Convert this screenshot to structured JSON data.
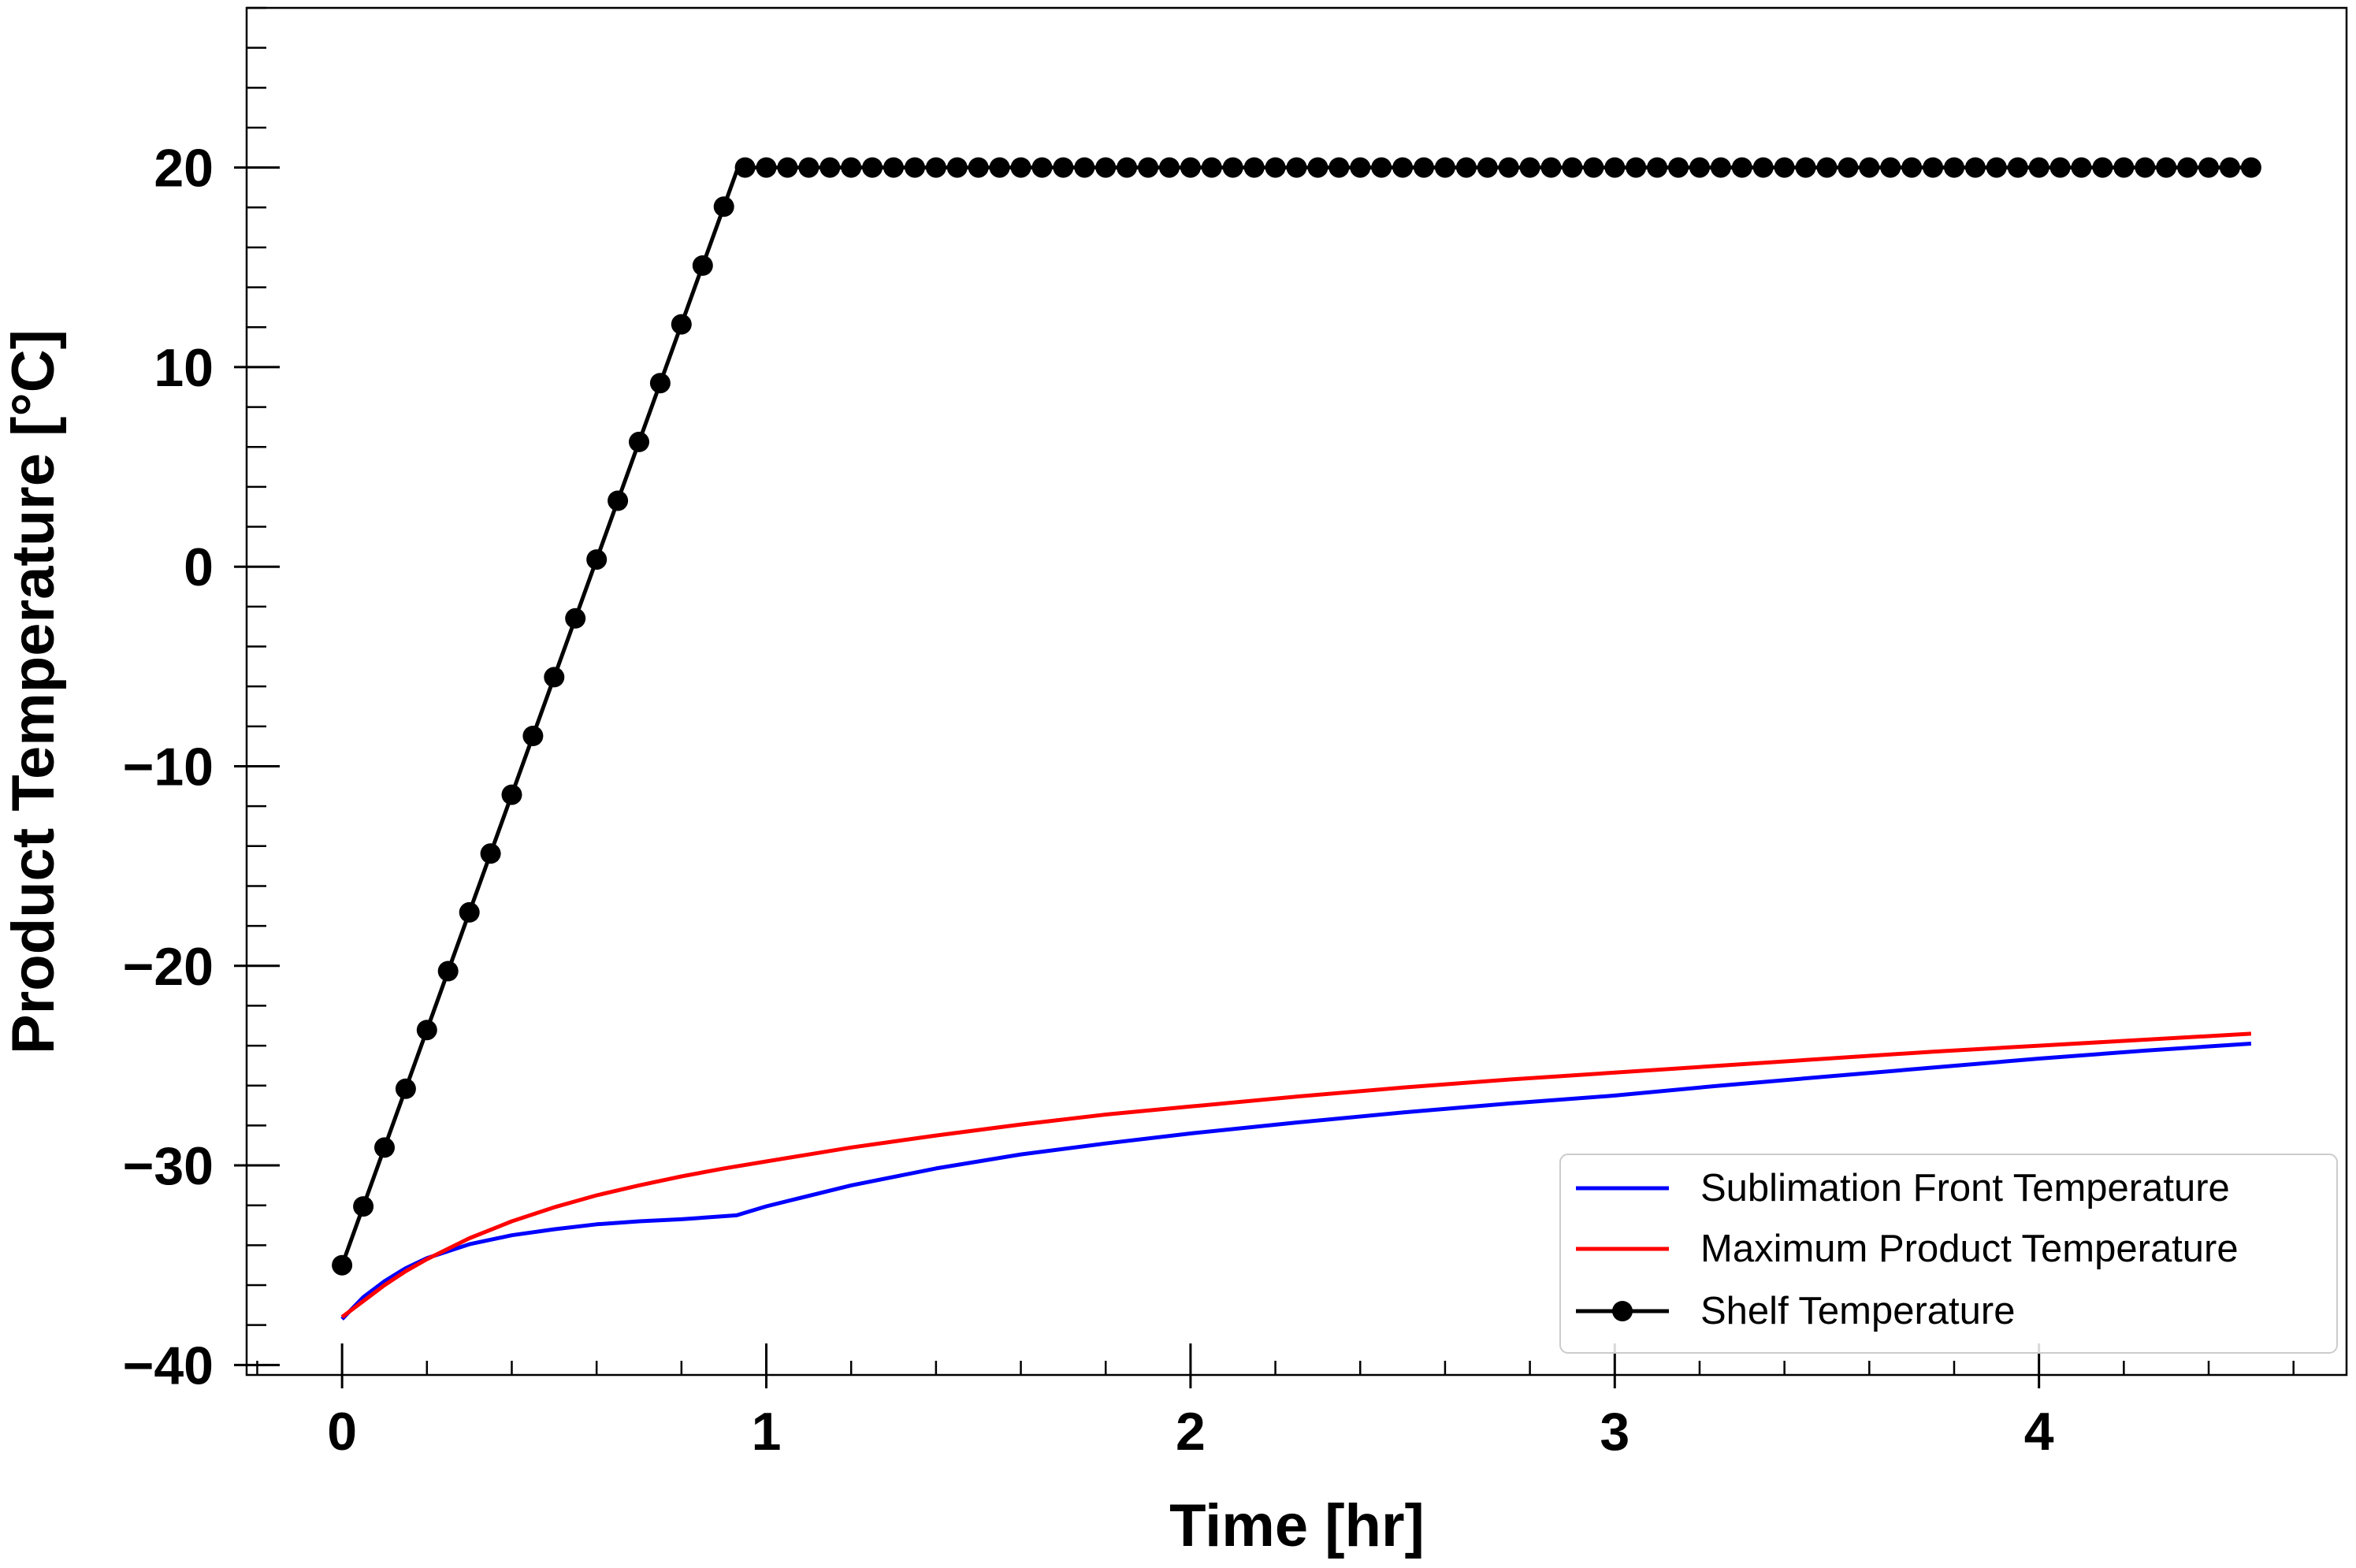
{
  "chart_data": {
    "type": "line",
    "title": "",
    "xlabel": "Time [hr]",
    "ylabel": "Product Temperature [°C]",
    "xlim": [
      -0.225,
      4.725
    ],
    "ylim": [
      -40.5,
      28
    ],
    "xticks": [
      0,
      1,
      2,
      3,
      4
    ],
    "xtick_labels": [
      "0",
      "1",
      "2",
      "3",
      "4"
    ],
    "yticks": [
      -40,
      -30,
      -20,
      -10,
      0,
      10,
      20
    ],
    "ytick_labels": [
      "−40",
      "−30",
      "−20",
      "−10",
      "0",
      "10",
      "20"
    ],
    "x_minor_step": 0.2,
    "y_minor_step": 2,
    "legend_position": "lower-right",
    "series": [
      {
        "name": "Sublimation Front Temperature",
        "color": "#0000ff",
        "marker": "none",
        "x": [
          0,
          0.05,
          0.1,
          0.15,
          0.2,
          0.3,
          0.4,
          0.5,
          0.6,
          0.7,
          0.8,
          0.93,
          1.0,
          1.2,
          1.4,
          1.6,
          1.8,
          2.0,
          2.25,
          2.5,
          2.75,
          3.0,
          3.25,
          3.5,
          3.75,
          4.0,
          4.25,
          4.5
        ],
        "y": [
          -37.7,
          -36.6,
          -35.8,
          -35.15,
          -34.65,
          -33.95,
          -33.5,
          -33.2,
          -32.95,
          -32.8,
          -32.7,
          -32.5,
          -32.05,
          -31.0,
          -30.15,
          -29.45,
          -28.9,
          -28.4,
          -27.85,
          -27.35,
          -26.9,
          -26.5,
          -26.0,
          -25.55,
          -25.1,
          -24.65,
          -24.25,
          -23.9
        ]
      },
      {
        "name": "Maximum Product Temperature",
        "color": "#ff0000",
        "marker": "none",
        "x": [
          0,
          0.05,
          0.1,
          0.15,
          0.2,
          0.3,
          0.4,
          0.5,
          0.6,
          0.7,
          0.8,
          0.9,
          1.0,
          1.2,
          1.4,
          1.6,
          1.8,
          2.0,
          2.25,
          2.5,
          2.75,
          3.0,
          3.25,
          3.5,
          3.75,
          4.0,
          4.25,
          4.5
        ],
        "y": [
          -37.6,
          -36.8,
          -36.0,
          -35.3,
          -34.7,
          -33.65,
          -32.8,
          -32.1,
          -31.5,
          -31.0,
          -30.55,
          -30.15,
          -29.8,
          -29.1,
          -28.5,
          -27.95,
          -27.45,
          -27.05,
          -26.55,
          -26.1,
          -25.7,
          -25.35,
          -25.0,
          -24.65,
          -24.3,
          -24.0,
          -23.7,
          -23.4
        ]
      },
      {
        "name": "Shelf Temperature",
        "color": "#000000",
        "marker": "circle",
        "ramp": {
          "x_start": 0,
          "y_start": -35,
          "x_end": 0.9333,
          "y_end": 20,
          "x_final": 4.5,
          "step": 0.05
        }
      }
    ]
  }
}
